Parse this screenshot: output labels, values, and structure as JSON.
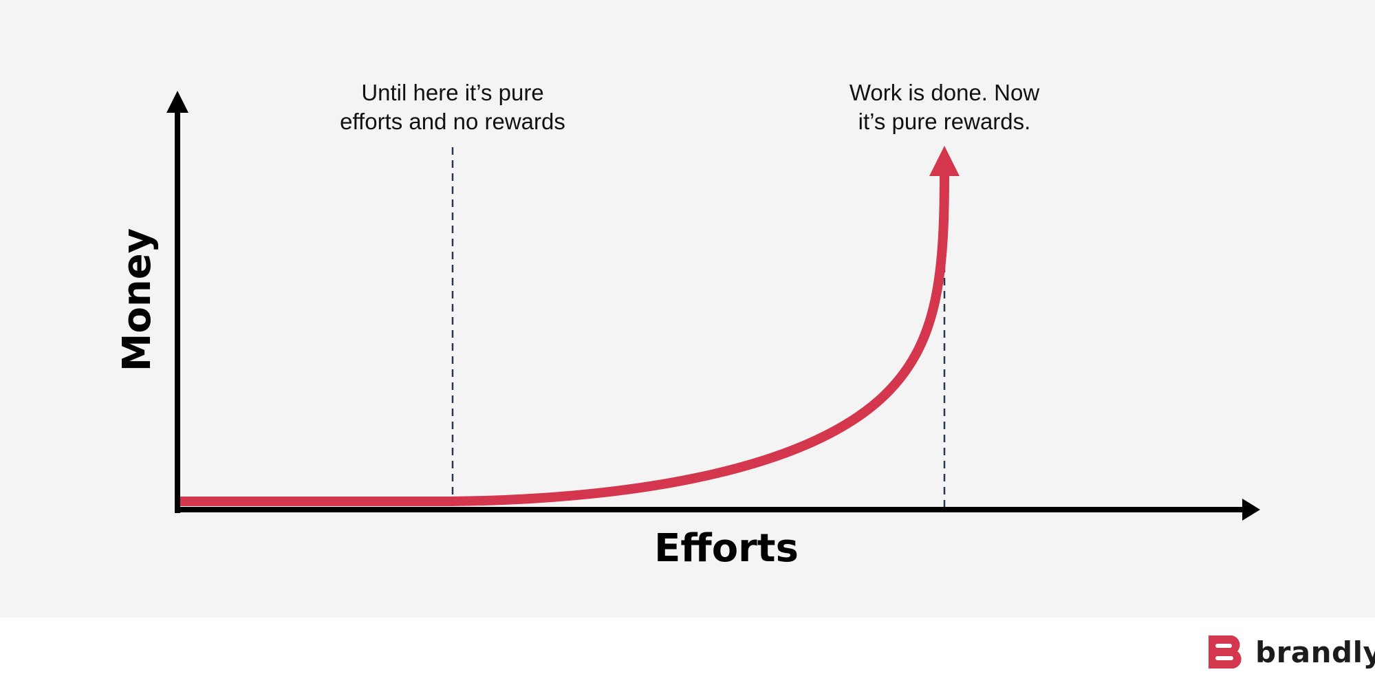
{
  "chart_data": {
    "type": "line",
    "xlabel": "Efforts",
    "ylabel": "Money",
    "grid": false,
    "annotations": [
      {
        "lines": [
          "Until here it’s pure",
          "efforts and no rewards"
        ]
      },
      {
        "lines": [
          "Work is done. Now",
          "it’s pure rewards."
        ]
      }
    ],
    "colors": {
      "curve": "#d4364e",
      "axes": "#000000",
      "guide_lines": "#2a3550",
      "background": "#f4f4f4"
    }
  },
  "brand": {
    "name": "brandly",
    "color": "#d4364e",
    "icon": "b-logo-icon"
  }
}
